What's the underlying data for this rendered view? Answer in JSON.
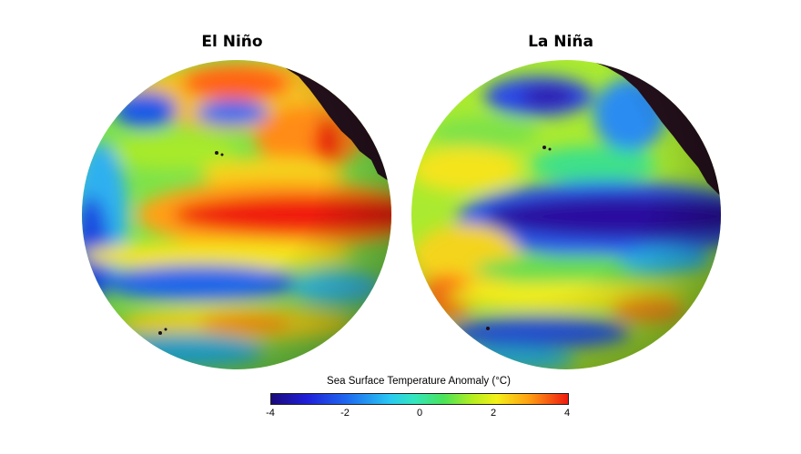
{
  "maps": [
    {
      "title": "El Niño"
    },
    {
      "title": "La Niña"
    }
  ],
  "legend": {
    "title": "Sea Surface Temperature Anomaly (°C)",
    "ticks": [
      "-4",
      "-2",
      "0",
      "2",
      "4"
    ],
    "range": [
      -4,
      4
    ]
  },
  "colors": {
    "land": "#24101c",
    "warm_max": "#f01a10",
    "cold_min": "#1a0a7a",
    "neutral": "#49e35a"
  }
}
